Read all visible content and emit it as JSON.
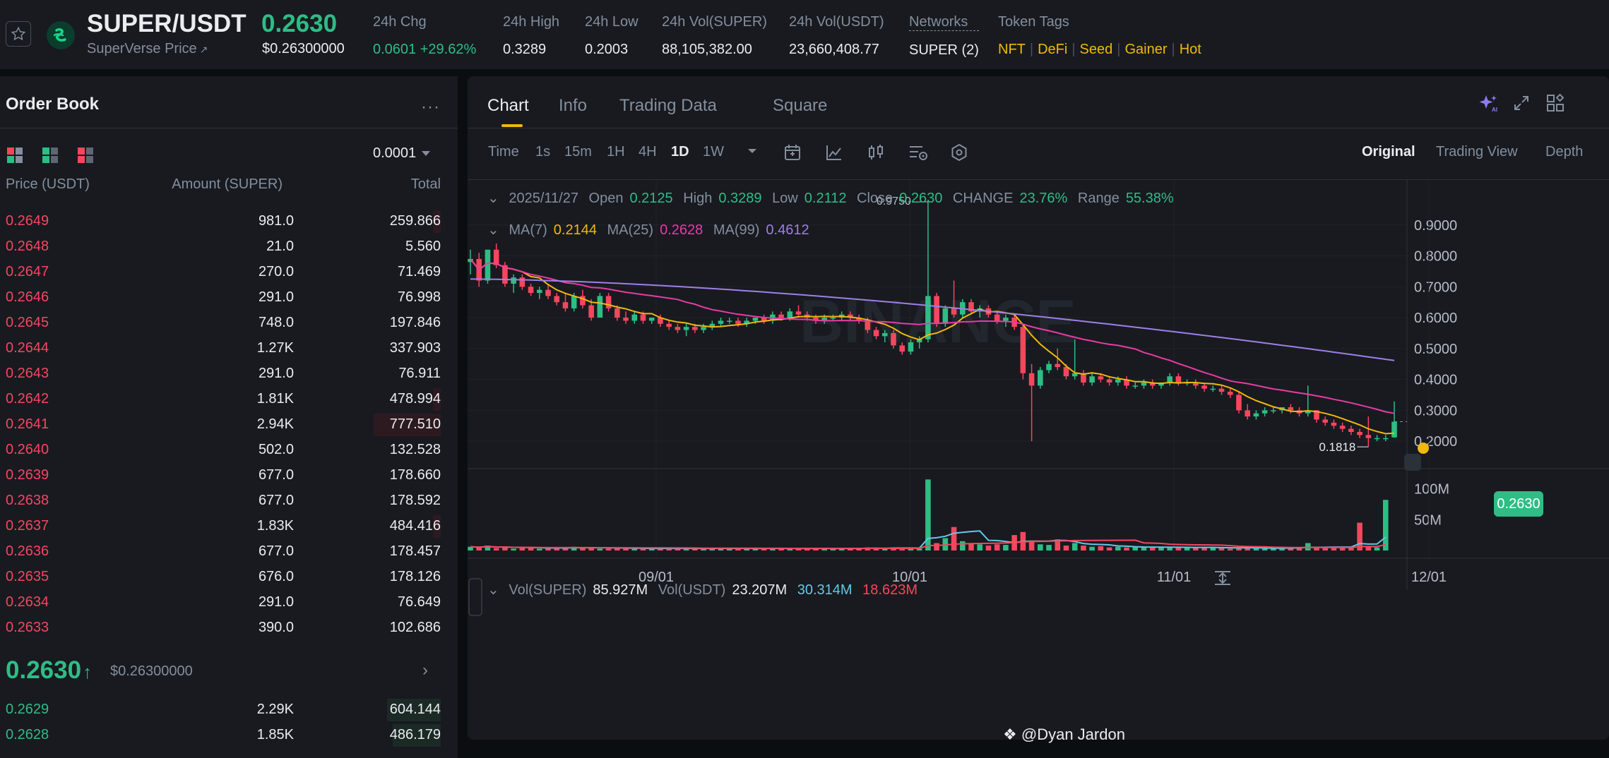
{
  "header": {
    "pair": "SUPER/USDT",
    "subtitle": "SuperVerse Price",
    "subtitle_link_icon": "external-arrow",
    "price": "0.2630",
    "price_usd": "$0.26300000",
    "stats": [
      {
        "label": "24h Chg",
        "value": "0.0601 +29.62%",
        "color": "#2ebd85"
      },
      {
        "label": "24h High",
        "value": "0.3289"
      },
      {
        "label": "24h Low",
        "value": "0.2003"
      },
      {
        "label": "24h Vol(SUPER)",
        "value": "88,105,382.00"
      },
      {
        "label": "24h Vol(USDT)",
        "value": "23,660,408.77"
      },
      {
        "label": "Networks",
        "value": "SUPER (2)"
      }
    ],
    "token_tags_label": "Token Tags",
    "token_tags": [
      "NFT",
      "DeFi",
      "Seed",
      "Gainer",
      "Hot"
    ]
  },
  "orderbook": {
    "title": "Order Book",
    "precision": "0.0001",
    "columns": [
      "Price (USDT)",
      "Amount (SUPER)",
      "Total"
    ],
    "asks": [
      {
        "price": "0.2649",
        "amount": "981.0",
        "total": "259.866",
        "depth": 0.03
      },
      {
        "price": "0.2648",
        "amount": "21.0",
        "total": "5.560",
        "depth": 0.0
      },
      {
        "price": "0.2647",
        "amount": "270.0",
        "total": "71.469",
        "depth": 0.0
      },
      {
        "price": "0.2646",
        "amount": "291.0",
        "total": "76.998",
        "depth": 0.0
      },
      {
        "price": "0.2645",
        "amount": "748.0",
        "total": "197.846",
        "depth": 0.0
      },
      {
        "price": "0.2644",
        "amount": "1.27K",
        "total": "337.903",
        "depth": 0.0
      },
      {
        "price": "0.2643",
        "amount": "291.0",
        "total": "76.911",
        "depth": 0.0
      },
      {
        "price": "0.2642",
        "amount": "1.81K",
        "total": "478.994",
        "depth": 0.03
      },
      {
        "price": "0.2641",
        "amount": "2.94K",
        "total": "777.510",
        "depth": 0.25
      },
      {
        "price": "0.2640",
        "amount": "502.0",
        "total": "132.528",
        "depth": 0.0
      },
      {
        "price": "0.2639",
        "amount": "677.0",
        "total": "178.660",
        "depth": 0.0
      },
      {
        "price": "0.2638",
        "amount": "677.0",
        "total": "178.592",
        "depth": 0.0
      },
      {
        "price": "0.2637",
        "amount": "1.83K",
        "total": "484.416",
        "depth": 0.03
      },
      {
        "price": "0.2636",
        "amount": "677.0",
        "total": "178.457",
        "depth": 0.0
      },
      {
        "price": "0.2635",
        "amount": "676.0",
        "total": "178.126",
        "depth": 0.0
      },
      {
        "price": "0.2634",
        "amount": "291.0",
        "total": "76.649",
        "depth": 0.0
      },
      {
        "price": "0.2633",
        "amount": "390.0",
        "total": "102.686",
        "depth": 0.0
      }
    ],
    "mid_price": "0.2630",
    "mid_arrow": "↑",
    "mid_usd": "$0.26300000",
    "bids": [
      {
        "price": "0.2629",
        "amount": "2.29K",
        "total": "604.144",
        "depth": 0.2
      },
      {
        "price": "0.2628",
        "amount": "1.85K",
        "total": "486.179",
        "depth": 0.18
      }
    ]
  },
  "chart_panel": {
    "tabs": [
      "Chart",
      "Info",
      "Trading Data",
      "Square"
    ],
    "active_tab": "Chart",
    "intervals": [
      "Time",
      "1s",
      "15m",
      "1H",
      "4H",
      "1D",
      "1W"
    ],
    "active_interval": "1D",
    "views": [
      "Original",
      "Trading View",
      "Depth"
    ],
    "active_view": "Original",
    "ohlc": {
      "date": "2025/11/27",
      "open_label": "Open",
      "open": "0.2125",
      "high_label": "High",
      "high": "0.3289",
      "low_label": "Low",
      "low": "0.2112",
      "close_label": "Close",
      "close": "0.2630",
      "change_label": "CHANGE",
      "change": "23.76%",
      "range_label": "Range",
      "range": "55.38%"
    },
    "ma": {
      "ma7_label": "MA(7)",
      "ma7": "0.2144",
      "ma25_label": "MA(25)",
      "ma25": "0.2628",
      "ma99_label": "MA(99)",
      "ma99": "0.4612"
    },
    "vol": {
      "label": "Vol(SUPER)",
      "value": "85.927M",
      "usdt_label": "Vol(USDT)",
      "usdt": "23.207M",
      "ma1": "30.314M",
      "ma2": "18.623M"
    },
    "current_price_tag": "0.2630",
    "watermark": "BINANCE",
    "credit": "@Dyan Jardon"
  },
  "chart_data": {
    "type": "candlestick",
    "y_ticks": [
      "0.9000",
      "0.8000",
      "0.7000",
      "0.6000",
      "0.5000",
      "0.4000",
      "0.3000",
      "0.2000"
    ],
    "vol_ticks": [
      "100M",
      "50M"
    ],
    "x_ticks": [
      "09/01",
      "10/01",
      "11/01",
      "12/01"
    ],
    "price_range": [
      0.15,
      1.0
    ],
    "vol_range": [
      0,
      120
    ],
    "annotations": {
      "high": "0.9750",
      "low": "0.1818"
    },
    "colors": {
      "up": "#2ebd85",
      "down": "#f6465d",
      "ma7": "#f0b90b",
      "ma25": "#e93ba5",
      "ma99": "#9f7fe6",
      "volma1": "#61c9e5",
      "volma2": "#f6465d"
    },
    "ohlc": [
      {
        "o": 0.78,
        "h": 0.82,
        "l": 0.74,
        "c": 0.79
      },
      {
        "o": 0.79,
        "h": 0.81,
        "l": 0.7,
        "c": 0.72
      },
      {
        "o": 0.72,
        "h": 0.82,
        "l": 0.71,
        "c": 0.82
      },
      {
        "o": 0.82,
        "h": 0.84,
        "l": 0.76,
        "c": 0.77
      },
      {
        "o": 0.77,
        "h": 0.78,
        "l": 0.7,
        "c": 0.71
      },
      {
        "o": 0.71,
        "h": 0.74,
        "l": 0.68,
        "c": 0.73
      },
      {
        "o": 0.73,
        "h": 0.74,
        "l": 0.69,
        "c": 0.7
      },
      {
        "o": 0.7,
        "h": 0.71,
        "l": 0.67,
        "c": 0.68
      },
      {
        "o": 0.68,
        "h": 0.7,
        "l": 0.66,
        "c": 0.69
      },
      {
        "o": 0.69,
        "h": 0.71,
        "l": 0.66,
        "c": 0.67
      },
      {
        "o": 0.67,
        "h": 0.68,
        "l": 0.64,
        "c": 0.65
      },
      {
        "o": 0.65,
        "h": 0.68,
        "l": 0.62,
        "c": 0.63
      },
      {
        "o": 0.63,
        "h": 0.68,
        "l": 0.62,
        "c": 0.67
      },
      {
        "o": 0.67,
        "h": 0.69,
        "l": 0.63,
        "c": 0.64
      },
      {
        "o": 0.64,
        "h": 0.66,
        "l": 0.59,
        "c": 0.6
      },
      {
        "o": 0.6,
        "h": 0.68,
        "l": 0.6,
        "c": 0.67
      },
      {
        "o": 0.67,
        "h": 0.68,
        "l": 0.62,
        "c": 0.63
      },
      {
        "o": 0.63,
        "h": 0.64,
        "l": 0.59,
        "c": 0.6
      },
      {
        "o": 0.6,
        "h": 0.62,
        "l": 0.58,
        "c": 0.59
      },
      {
        "o": 0.59,
        "h": 0.62,
        "l": 0.58,
        "c": 0.61
      },
      {
        "o": 0.61,
        "h": 0.62,
        "l": 0.58,
        "c": 0.59
      },
      {
        "o": 0.59,
        "h": 0.6,
        "l": 0.58,
        "c": 0.6
      },
      {
        "o": 0.6,
        "h": 0.61,
        "l": 0.57,
        "c": 0.58
      },
      {
        "o": 0.58,
        "h": 0.59,
        "l": 0.56,
        "c": 0.57
      },
      {
        "o": 0.57,
        "h": 0.58,
        "l": 0.55,
        "c": 0.56
      },
      {
        "o": 0.56,
        "h": 0.58,
        "l": 0.54,
        "c": 0.57
      },
      {
        "o": 0.57,
        "h": 0.58,
        "l": 0.55,
        "c": 0.56
      },
      {
        "o": 0.56,
        "h": 0.58,
        "l": 0.55,
        "c": 0.57
      },
      {
        "o": 0.57,
        "h": 0.59,
        "l": 0.56,
        "c": 0.58
      },
      {
        "o": 0.58,
        "h": 0.6,
        "l": 0.57,
        "c": 0.59
      },
      {
        "o": 0.59,
        "h": 0.6,
        "l": 0.58,
        "c": 0.59
      },
      {
        "o": 0.59,
        "h": 0.6,
        "l": 0.57,
        "c": 0.58
      },
      {
        "o": 0.58,
        "h": 0.6,
        "l": 0.57,
        "c": 0.59
      },
      {
        "o": 0.59,
        "h": 0.6,
        "l": 0.58,
        "c": 0.6
      },
      {
        "o": 0.6,
        "h": 0.61,
        "l": 0.58,
        "c": 0.59
      },
      {
        "o": 0.59,
        "h": 0.62,
        "l": 0.58,
        "c": 0.61
      },
      {
        "o": 0.61,
        "h": 0.62,
        "l": 0.59,
        "c": 0.6
      },
      {
        "o": 0.6,
        "h": 0.63,
        "l": 0.59,
        "c": 0.62
      },
      {
        "o": 0.62,
        "h": 0.64,
        "l": 0.6,
        "c": 0.61
      },
      {
        "o": 0.61,
        "h": 0.62,
        "l": 0.59,
        "c": 0.6
      },
      {
        "o": 0.6,
        "h": 0.61,
        "l": 0.58,
        "c": 0.59
      },
      {
        "o": 0.59,
        "h": 0.61,
        "l": 0.58,
        "c": 0.6
      },
      {
        "o": 0.6,
        "h": 0.61,
        "l": 0.59,
        "c": 0.6
      },
      {
        "o": 0.6,
        "h": 0.62,
        "l": 0.59,
        "c": 0.61
      },
      {
        "o": 0.61,
        "h": 0.62,
        "l": 0.59,
        "c": 0.6
      },
      {
        "o": 0.6,
        "h": 0.61,
        "l": 0.58,
        "c": 0.59
      },
      {
        "o": 0.59,
        "h": 0.6,
        "l": 0.55,
        "c": 0.56
      },
      {
        "o": 0.56,
        "h": 0.57,
        "l": 0.53,
        "c": 0.54
      },
      {
        "o": 0.54,
        "h": 0.56,
        "l": 0.52,
        "c": 0.55
      },
      {
        "o": 0.55,
        "h": 0.56,
        "l": 0.5,
        "c": 0.51
      },
      {
        "o": 0.51,
        "h": 0.52,
        "l": 0.48,
        "c": 0.49
      },
      {
        "o": 0.49,
        "h": 0.53,
        "l": 0.48,
        "c": 0.52
      },
      {
        "o": 0.52,
        "h": 0.54,
        "l": 0.5,
        "c": 0.53
      },
      {
        "o": 0.53,
        "h": 0.975,
        "l": 0.52,
        "c": 0.67
      },
      {
        "o": 0.67,
        "h": 0.68,
        "l": 0.57,
        "c": 0.58
      },
      {
        "o": 0.58,
        "h": 0.64,
        "l": 0.57,
        "c": 0.63
      },
      {
        "o": 0.63,
        "h": 0.72,
        "l": 0.6,
        "c": 0.61
      },
      {
        "o": 0.61,
        "h": 0.66,
        "l": 0.6,
        "c": 0.65
      },
      {
        "o": 0.65,
        "h": 0.66,
        "l": 0.61,
        "c": 0.62
      },
      {
        "o": 0.62,
        "h": 0.64,
        "l": 0.6,
        "c": 0.63
      },
      {
        "o": 0.63,
        "h": 0.64,
        "l": 0.6,
        "c": 0.61
      },
      {
        "o": 0.61,
        "h": 0.62,
        "l": 0.58,
        "c": 0.59
      },
      {
        "o": 0.59,
        "h": 0.61,
        "l": 0.57,
        "c": 0.6
      },
      {
        "o": 0.6,
        "h": 0.61,
        "l": 0.56,
        "c": 0.57
      },
      {
        "o": 0.57,
        "h": 0.58,
        "l": 0.4,
        "c": 0.42
      },
      {
        "o": 0.42,
        "h": 0.45,
        "l": 0.2,
        "c": 0.38
      },
      {
        "o": 0.38,
        "h": 0.44,
        "l": 0.37,
        "c": 0.43
      },
      {
        "o": 0.43,
        "h": 0.46,
        "l": 0.42,
        "c": 0.45
      },
      {
        "o": 0.45,
        "h": 0.5,
        "l": 0.43,
        "c": 0.44
      },
      {
        "o": 0.44,
        "h": 0.45,
        "l": 0.4,
        "c": 0.41
      },
      {
        "o": 0.41,
        "h": 0.53,
        "l": 0.4,
        "c": 0.42
      },
      {
        "o": 0.42,
        "h": 0.43,
        "l": 0.38,
        "c": 0.39
      },
      {
        "o": 0.39,
        "h": 0.42,
        "l": 0.38,
        "c": 0.41
      },
      {
        "o": 0.41,
        "h": 0.42,
        "l": 0.39,
        "c": 0.4
      },
      {
        "o": 0.4,
        "h": 0.41,
        "l": 0.38,
        "c": 0.39
      },
      {
        "o": 0.39,
        "h": 0.41,
        "l": 0.38,
        "c": 0.4
      },
      {
        "o": 0.4,
        "h": 0.41,
        "l": 0.37,
        "c": 0.38
      },
      {
        "o": 0.38,
        "h": 0.39,
        "l": 0.37,
        "c": 0.38
      },
      {
        "o": 0.38,
        "h": 0.4,
        "l": 0.37,
        "c": 0.39
      },
      {
        "o": 0.39,
        "h": 0.4,
        "l": 0.37,
        "c": 0.38
      },
      {
        "o": 0.38,
        "h": 0.39,
        "l": 0.37,
        "c": 0.39
      },
      {
        "o": 0.39,
        "h": 0.42,
        "l": 0.38,
        "c": 0.41
      },
      {
        "o": 0.41,
        "h": 0.42,
        "l": 0.38,
        "c": 0.39
      },
      {
        "o": 0.39,
        "h": 0.4,
        "l": 0.38,
        "c": 0.39
      },
      {
        "o": 0.39,
        "h": 0.4,
        "l": 0.37,
        "c": 0.38
      },
      {
        "o": 0.38,
        "h": 0.39,
        "l": 0.36,
        "c": 0.37
      },
      {
        "o": 0.37,
        "h": 0.38,
        "l": 0.36,
        "c": 0.37
      },
      {
        "o": 0.37,
        "h": 0.38,
        "l": 0.35,
        "c": 0.36
      },
      {
        "o": 0.36,
        "h": 0.37,
        "l": 0.34,
        "c": 0.35
      },
      {
        "o": 0.35,
        "h": 0.36,
        "l": 0.29,
        "c": 0.3
      },
      {
        "o": 0.3,
        "h": 0.32,
        "l": 0.27,
        "c": 0.28
      },
      {
        "o": 0.28,
        "h": 0.3,
        "l": 0.27,
        "c": 0.29
      },
      {
        "o": 0.29,
        "h": 0.31,
        "l": 0.28,
        "c": 0.3
      },
      {
        "o": 0.3,
        "h": 0.31,
        "l": 0.29,
        "c": 0.3
      },
      {
        "o": 0.3,
        "h": 0.31,
        "l": 0.29,
        "c": 0.31
      },
      {
        "o": 0.31,
        "h": 0.32,
        "l": 0.29,
        "c": 0.3
      },
      {
        "o": 0.3,
        "h": 0.31,
        "l": 0.28,
        "c": 0.29
      },
      {
        "o": 0.29,
        "h": 0.38,
        "l": 0.28,
        "c": 0.3
      },
      {
        "o": 0.3,
        "h": 0.3,
        "l": 0.26,
        "c": 0.27
      },
      {
        "o": 0.27,
        "h": 0.28,
        "l": 0.25,
        "c": 0.26
      },
      {
        "o": 0.26,
        "h": 0.27,
        "l": 0.24,
        "c": 0.25
      },
      {
        "o": 0.25,
        "h": 0.26,
        "l": 0.23,
        "c": 0.24
      },
      {
        "o": 0.24,
        "h": 0.25,
        "l": 0.22,
        "c": 0.23
      },
      {
        "o": 0.23,
        "h": 0.24,
        "l": 0.21,
        "c": 0.22
      },
      {
        "o": 0.22,
        "h": 0.28,
        "l": 0.1818,
        "c": 0.21
      },
      {
        "o": 0.21,
        "h": 0.22,
        "l": 0.2,
        "c": 0.21
      },
      {
        "o": 0.21,
        "h": 0.22,
        "l": 0.2,
        "c": 0.21
      },
      {
        "o": 0.2125,
        "h": 0.3289,
        "l": 0.2112,
        "c": 0.263
      }
    ],
    "volume": [
      6,
      5,
      8,
      4,
      5,
      3,
      4,
      5,
      3,
      4,
      5,
      4,
      6,
      4,
      5,
      3,
      3,
      4,
      3,
      4,
      3,
      3,
      3,
      4,
      3,
      4,
      3,
      3,
      3,
      4,
      3,
      4,
      3,
      3,
      3,
      4,
      3,
      3,
      4,
      3,
      3,
      4,
      3,
      3,
      3,
      4,
      5,
      4,
      3,
      5,
      4,
      3,
      3,
      115,
      12,
      20,
      38,
      15,
      12,
      10,
      8,
      10,
      9,
      25,
      30,
      14,
      10,
      9,
      18,
      8,
      12,
      8,
      6,
      7,
      5,
      6,
      5,
      6,
      5,
      5,
      6,
      5,
      5,
      4,
      4,
      6,
      5,
      4,
      3,
      4,
      5,
      4,
      3,
      3,
      4,
      5,
      5,
      12,
      4,
      4,
      5,
      4,
      5,
      45,
      6,
      5,
      82
    ]
  }
}
